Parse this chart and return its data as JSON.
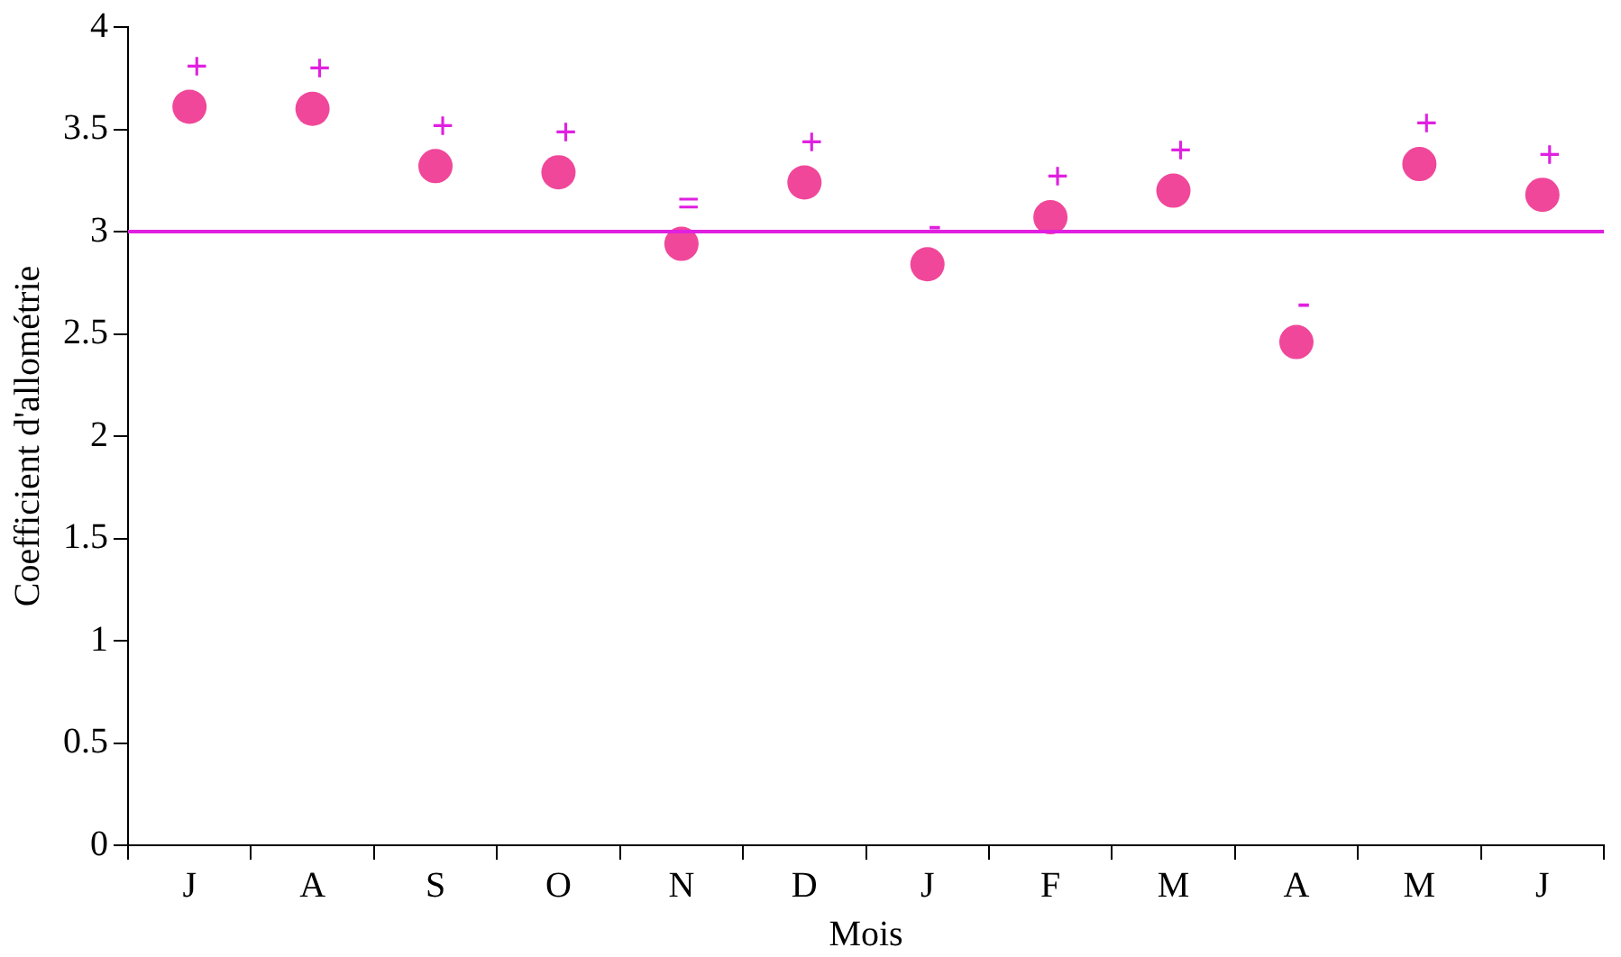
{
  "chart_data": {
    "type": "scatter",
    "xlabel": "Mois",
    "ylabel": "Coefficient d'allométrie",
    "categories": [
      "J",
      "A",
      "S",
      "O",
      "N",
      "D",
      "J",
      "F",
      "M",
      "A",
      "M",
      "J"
    ],
    "series": [
      {
        "color": "#f0479a",
        "values": [
          3.61,
          3.6,
          3.32,
          3.29,
          2.94,
          3.24,
          2.84,
          3.07,
          3.2,
          2.46,
          3.33,
          3.18
        ],
        "value_labels": [
          "+",
          "+",
          "+",
          "+",
          "=",
          "+",
          "-",
          "+",
          "+",
          "-",
          "+",
          "+"
        ]
      }
    ],
    "ylim": [
      0,
      4
    ],
    "yticks": [
      0,
      0.5,
      1,
      1.5,
      2,
      2.5,
      3,
      3.5,
      4
    ],
    "ref_lines": [
      {
        "axis": "y",
        "value": 3,
        "color": "#e020e0"
      }
    ],
    "grid": false,
    "legend": false,
    "marker": "circle"
  }
}
